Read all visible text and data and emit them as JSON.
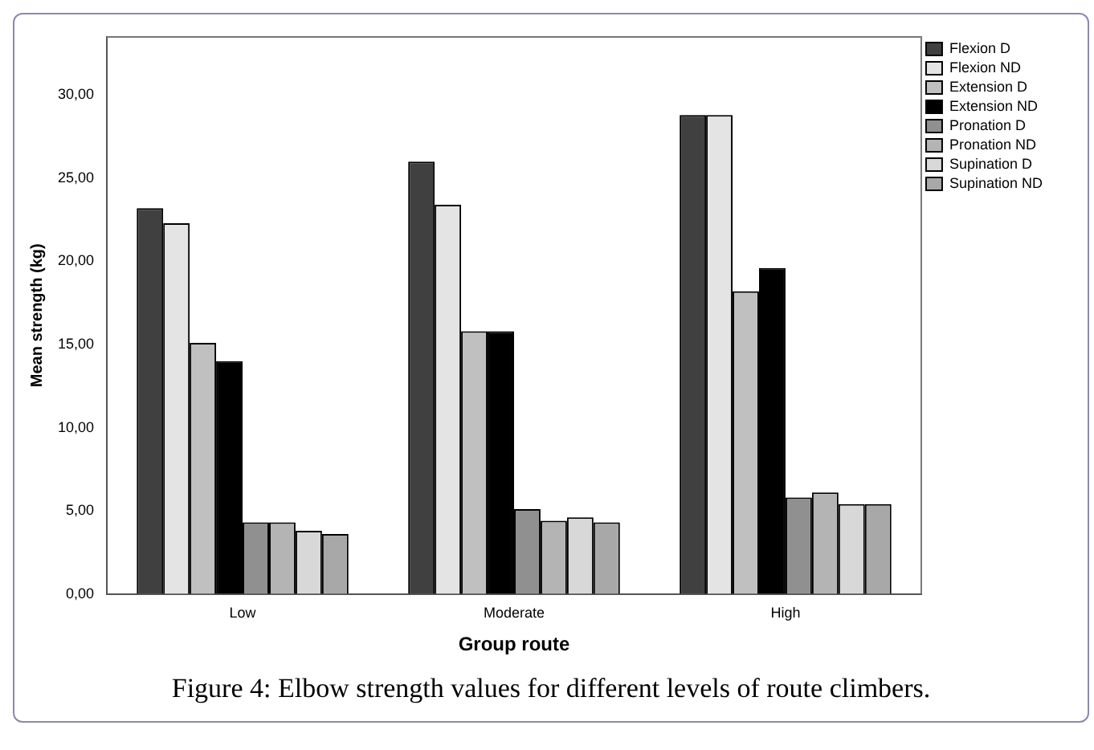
{
  "chart_data": {
    "type": "bar",
    "xlabel": "Group route",
    "ylabel": "Mean strength (kg)",
    "categories": [
      "Low",
      "Moderate",
      "High"
    ],
    "series": [
      {
        "name": "Flexion D",
        "color": "#404040",
        "values": [
          23.2,
          26.0,
          28.8
        ]
      },
      {
        "name": "Flexion ND",
        "color": "#e4e4e4",
        "values": [
          22.3,
          23.4,
          28.8
        ]
      },
      {
        "name": "Extension D",
        "color": "#c0c0c0",
        "values": [
          15.1,
          15.8,
          18.2
        ]
      },
      {
        "name": "Extension ND",
        "color": "#000000",
        "values": [
          14.0,
          15.8,
          19.6
        ]
      },
      {
        "name": "Pronation D",
        "color": "#909090",
        "values": [
          4.3,
          5.1,
          5.8
        ]
      },
      {
        "name": "Pronation ND",
        "color": "#b4b4b4",
        "values": [
          4.3,
          4.4,
          6.1
        ]
      },
      {
        "name": "Supination D",
        "color": "#d8d8d8",
        "values": [
          3.8,
          4.6,
          5.4
        ]
      },
      {
        "name": "Supination ND",
        "color": "#a8a8a8",
        "values": [
          3.6,
          4.3,
          5.4
        ]
      }
    ],
    "ylim": [
      0,
      33.5
    ],
    "yticks": [
      {
        "value": 0,
        "label": "0,00"
      },
      {
        "value": 5,
        "label": "5,00"
      },
      {
        "value": 10,
        "label": "10,00"
      },
      {
        "value": 15,
        "label": "15,00"
      },
      {
        "value": 20,
        "label": "20,00"
      },
      {
        "value": 25,
        "label": "25,00"
      },
      {
        "value": 30,
        "label": "30,00"
      }
    ],
    "grid": false,
    "legend": "top right",
    "annotations": [
      "Figure 4: Elbow strength values for different levels of route climbers."
    ]
  }
}
